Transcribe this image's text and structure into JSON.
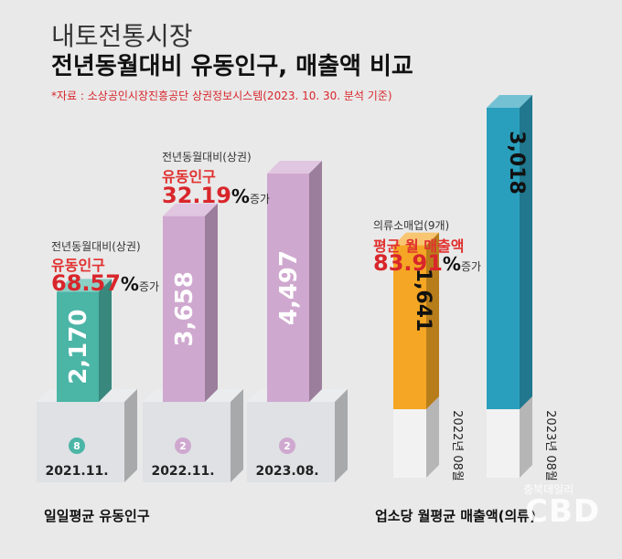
{
  "header": {
    "title_line1": "내토전통시장",
    "title_line2": "전년동월대비 유동인구, 매출액 비교",
    "source": "*자료 : 소상공인시장진흥공단 상권정보시스템(2023. 10. 30. 분석 기준)"
  },
  "colors": {
    "teal": "#4bb5a6",
    "pink": "#cfa8cf",
    "orange": "#f4a624",
    "blue": "#2a9fbd",
    "red": "#d8262b"
  },
  "annotations": {
    "left": {
      "small": "전년동월대비(상권)",
      "label": "유동인구",
      "value": "68.57",
      "unit": "%",
      "suffix": "증가"
    },
    "mid": {
      "small": "전년동월대비(상권)",
      "label": "유동인구",
      "value": "32.19",
      "unit": "%",
      "suffix": "증가"
    },
    "right": {
      "small": "의류소매업(9개)",
      "label": "평균 월 매출액",
      "value": "83.91",
      "unit": "%",
      "suffix": "증가"
    }
  },
  "bottom_labels": {
    "left": "일일평균 유동인구",
    "right": "업소당 월평균 매출액(의류)"
  },
  "watermark": {
    "sub": "충북데일리",
    "main": "CBD"
  },
  "chart_data": [
    {
      "type": "bar",
      "title": "",
      "xlabel": "일일평균 유동인구",
      "ylabel": "",
      "categories": [
        "2021.11.",
        "2022.11.",
        "2023.08."
      ],
      "values": [
        2170,
        3658,
        4497
      ],
      "value_labels": [
        "2,170",
        "3,658",
        "4,497"
      ],
      "colors": [
        "#4bb5a6",
        "#cfa8cf",
        "#cfa8cf"
      ],
      "icons": [
        "8",
        "2",
        "2"
      ]
    },
    {
      "type": "bar",
      "title": "",
      "xlabel": "업소당 월평균 매출액(의류)",
      "ylabel": "",
      "categories": [
        "2022년 08월",
        "2023년 08월"
      ],
      "values": [
        1641,
        3018
      ],
      "value_labels": [
        "1,641",
        "3,018"
      ],
      "colors": [
        "#f4a624",
        "#2a9fbd"
      ]
    }
  ]
}
